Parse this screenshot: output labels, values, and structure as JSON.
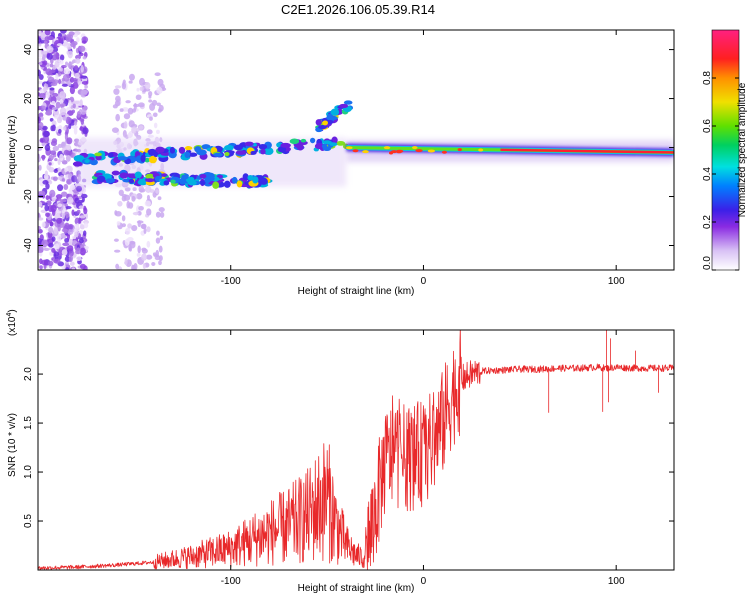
{
  "title": "C2E1.2026.106.05.39.R14",
  "chart_data": [
    {
      "type": "heatmap",
      "xlabel": "Height of straight line (km)",
      "ylabel": "Frequency (Hz)",
      "xlim": [
        -200,
        130
      ],
      "ylim": [
        -50,
        48
      ],
      "xticks": [
        -100,
        0,
        100
      ],
      "yticks": [
        -40,
        -20,
        0,
        20,
        40
      ],
      "colorbar": {
        "label": "Normalized spectral amplitude",
        "range": [
          0.0,
          1.0
        ],
        "ticks": [
          0.0,
          0.2,
          0.4,
          0.6,
          0.8
        ],
        "tick_labels": [
          "0.0",
          "0.2",
          "0.4",
          "0.6",
          "0.8"
        ]
      },
      "features": [
        {
          "name": "noise-band",
          "x_range": [
            -200,
            -175
          ],
          "freq_range": [
            -50,
            48
          ],
          "amplitude": 0.2
        },
        {
          "name": "faint-noise-band",
          "x_range": [
            -160,
            -135
          ],
          "freq_range": [
            -50,
            30
          ],
          "amplitude": 0.1
        },
        {
          "name": "carrier-upper",
          "x_start": -180,
          "x_end": -40,
          "freq_start": -5,
          "freq_end": 2,
          "amplitude": 0.35
        },
        {
          "name": "carrier-lower",
          "x_start": -170,
          "x_end": -80,
          "freq_start": -12,
          "freq_end": -14,
          "amplitude": 0.3
        },
        {
          "name": "rising-branch",
          "x_start": -55,
          "x_end": -38,
          "freq_start": 8,
          "freq_end": 18,
          "amplitude": 0.25
        },
        {
          "name": "main-carrier",
          "x_start": -40,
          "x_end": 130,
          "freq_start": 0,
          "freq_end": -2,
          "amplitude": 0.95
        }
      ]
    },
    {
      "type": "line",
      "xlabel": "Height of straight line (km)",
      "ylabel": "SNR (10 * v/v)",
      "y_multiplier": "(x10",
      "y_exponent": "4",
      "y_multiplier_close": ")",
      "xlim": [
        -200,
        130
      ],
      "ylim": [
        0,
        2.45
      ],
      "xticks": [
        -100,
        0,
        100
      ],
      "yticks": [
        0.5,
        1.0,
        1.5,
        2.0
      ],
      "ytick_labels": [
        "0.5",
        "1.0",
        "1.5",
        "2.0"
      ],
      "series": [
        {
          "name": "SNR",
          "color": "#e8282a",
          "x": [
            -200,
            -180,
            -160,
            -140,
            -120,
            -100,
            -90,
            -80,
            -70,
            -60,
            -50,
            -45,
            -40,
            -35,
            -30,
            -25,
            -20,
            -15,
            -10,
            -5,
            0,
            5,
            10,
            15,
            20,
            25,
            30,
            40,
            50,
            60,
            70,
            80,
            90,
            95,
            100,
            110,
            120,
            130
          ],
          "y": [
            0.02,
            0.03,
            0.05,
            0.08,
            0.14,
            0.22,
            0.3,
            0.38,
            0.45,
            0.55,
            0.75,
            0.45,
            0.25,
            0.15,
            0.12,
            0.6,
            1.1,
            1.2,
            1.15,
            1.15,
            1.2,
            1.3,
            1.5,
            1.8,
            1.95,
            2.0,
            2.03,
            2.04,
            2.05,
            2.05,
            2.06,
            2.06,
            2.07,
            2.06,
            2.07,
            2.06,
            2.06,
            2.06
          ]
        }
      ]
    }
  ]
}
